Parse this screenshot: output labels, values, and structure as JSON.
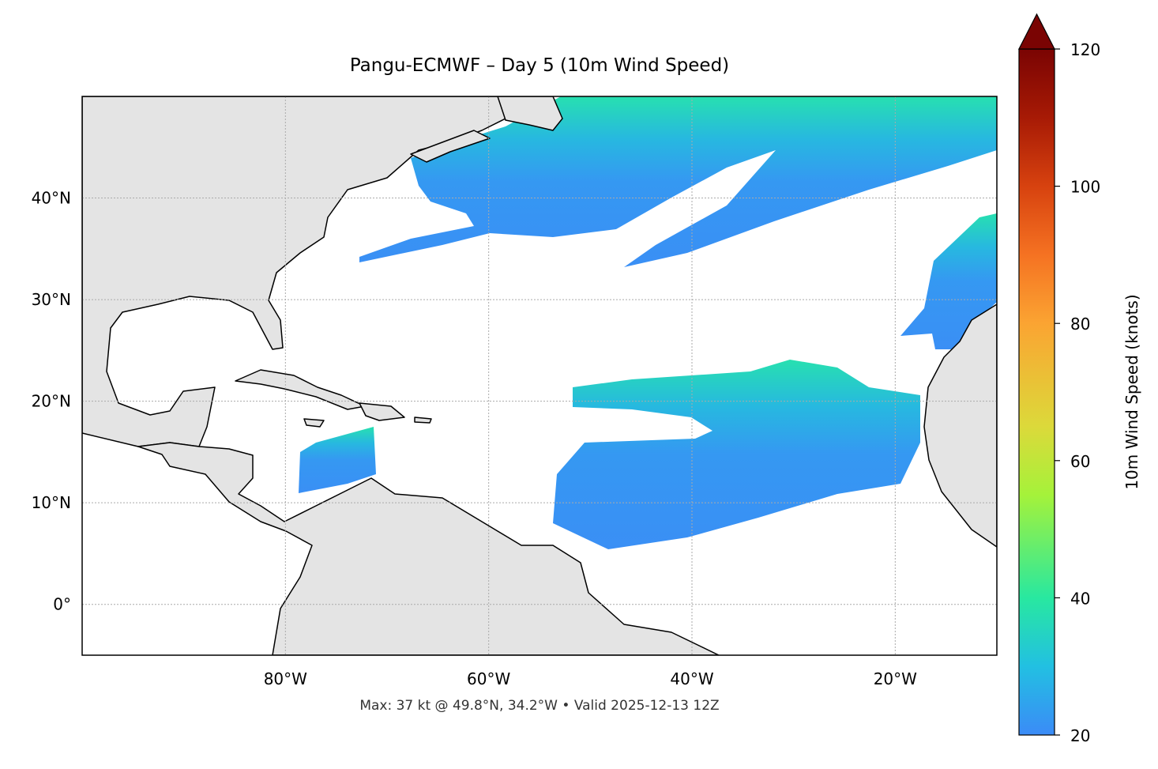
{
  "title": "Pangu-ECMWF – Day 5 (10m Wind Speed)",
  "footer": "Max: 37 kt @ 49.8°N, 34.2°W • Valid 2025-12-13 12Z",
  "map": {
    "lon_range": [
      -100,
      -10
    ],
    "lat_range": [
      -5,
      50
    ],
    "lon_ticks": [
      {
        "value": -80,
        "label": "80°W"
      },
      {
        "value": -60,
        "label": "60°W"
      },
      {
        "value": -40,
        "label": "40°W"
      },
      {
        "value": -20,
        "label": "20°W"
      }
    ],
    "lat_ticks": [
      {
        "value": 0,
        "label": "0°"
      },
      {
        "value": 10,
        "label": "10°N"
      },
      {
        "value": 20,
        "label": "20°N"
      },
      {
        "value": 30,
        "label": "30°N"
      },
      {
        "value": 40,
        "label": "40°N"
      }
    ]
  },
  "colorbar": {
    "label": "10m Wind Speed (knots)",
    "range": [
      20,
      120
    ],
    "ticks": [
      20,
      40,
      60,
      80,
      100,
      120
    ]
  }
}
